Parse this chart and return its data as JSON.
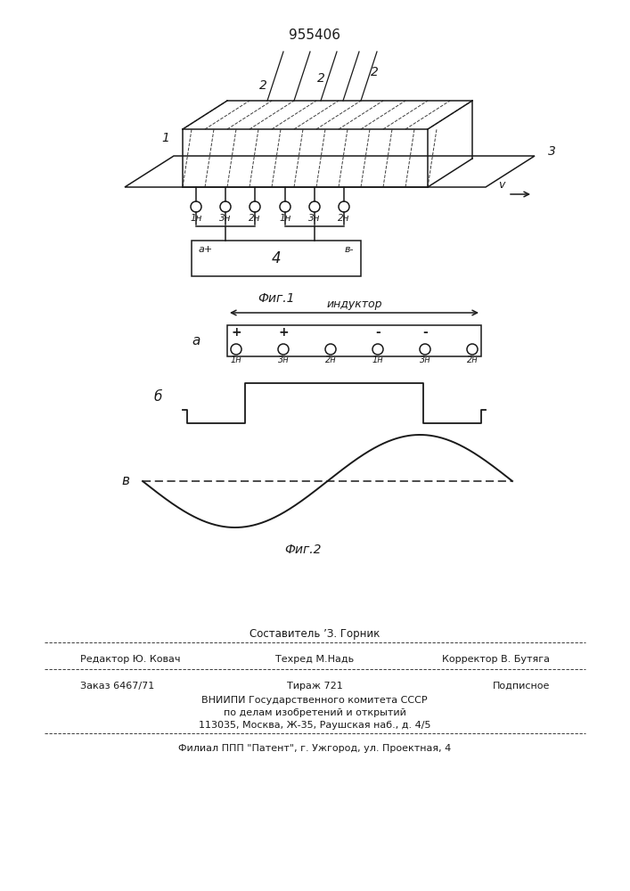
{
  "patent_number": "955406",
  "fig1_caption": "Фиг.1",
  "fig2_caption": "Фиг.2",
  "background_color": "#ffffff",
  "line_color": "#1a1a1a",
  "label_a": "а",
  "label_b": "б",
  "label_v": "в",
  "inductor_label": "индуктор",
  "terminal_labels": [
    "1н",
    "3н",
    "2н",
    "1н",
    "3н",
    "2н"
  ],
  "footer_line0": "Составитель ’З. Горник",
  "footer_line1_l": "Редактор Ю. Ковач",
  "footer_line1_m": "Техред М.Надь",
  "footer_line1_r": "Корректор В. Бутяга",
  "footer_line2_l": "Заказ 6467/71",
  "footer_line2_m": "Тираж 721",
  "footer_line2_r": "Подписное",
  "footer_line3": "ВНИИПИ Государственного комитета СССР",
  "footer_line4": "по делам изобретений и открытий",
  "footer_line5": "113035, Москва, Ж-35, Раушская наб., д. 4/5",
  "footer_line6": "Филиал ППП \"Патент\", г. Ужгород, ул. Проектная, 4"
}
